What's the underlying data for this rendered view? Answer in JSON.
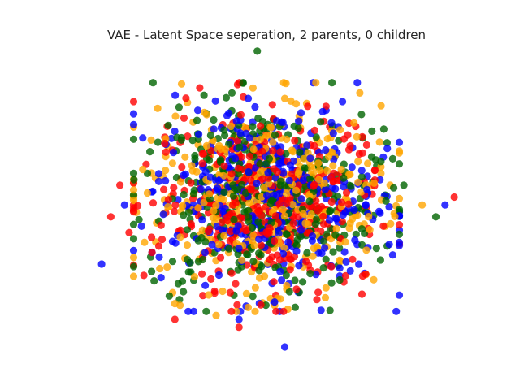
{
  "chart_data": {
    "type": "scatter",
    "title": "VAE - Latent Space seperation, 2 parents, 0 children",
    "xlabel": "",
    "ylabel": "",
    "axes_visible": false,
    "grid": false,
    "legend": "none",
    "x_range": [
      -4.4,
      4.4
    ],
    "y_range": [
      -3.8,
      3.8
    ],
    "marker_alpha": 0.8,
    "series": [
      {
        "color": "#ff0000",
        "values": [
          [
            -3.2,
            0.3
          ],
          [
            4.1,
            0.0
          ],
          [
            -3.4,
            -0.5
          ],
          [
            -3.0,
            -0.9
          ],
          [
            -1.8,
            2.0
          ],
          [
            0.9,
            2.3
          ],
          [
            1.3,
            2.3
          ],
          [
            -2.0,
            -3.1
          ],
          [
            1.1,
            -2.6
          ],
          [
            -0.6,
            -3.3
          ],
          [
            2.1,
            -2.0
          ],
          [
            -2.2,
            -0.4
          ],
          [
            1.8,
            1.2
          ],
          [
            -1.4,
            1.1
          ]
        ]
      },
      {
        "color": "#ffa500",
        "values": [
          [
            0.4,
            2.5
          ],
          [
            2.0,
            0.9
          ],
          [
            -2.0,
            -2.7
          ],
          [
            -1.1,
            -3.0
          ],
          [
            3.4,
            -0.2
          ],
          [
            2.5,
            0.6
          ],
          [
            1.3,
            -2.3
          ],
          [
            -0.4,
            -2.8
          ],
          [
            -1.6,
            1.9
          ],
          [
            2.7,
            0.3
          ],
          [
            -2.7,
            0.7
          ],
          [
            1.6,
            -1.6
          ]
        ]
      },
      {
        "color": "#0000ff",
        "values": [
          [
            -1.5,
            2.2
          ],
          [
            -0.4,
            2.5
          ],
          [
            3.9,
            -0.2
          ],
          [
            -3.6,
            -1.7
          ],
          [
            0.4,
            -3.8
          ],
          [
            -0.6,
            -3.1
          ],
          [
            1.6,
            -1.8
          ],
          [
            -2.7,
            1.5
          ],
          [
            -3.1,
            -0.2
          ],
          [
            -2.5,
            -1.4
          ],
          [
            1.3,
            2.2
          ],
          [
            1.6,
            -2.0
          ]
        ]
      },
      {
        "color": "#006400",
        "values": [
          [
            -0.2,
            3.7
          ],
          [
            2.5,
            0.9
          ],
          [
            3.0,
            0.3
          ],
          [
            3.7,
            -0.5
          ],
          [
            -1.9,
            -2.6
          ],
          [
            1.6,
            -2.1
          ],
          [
            -2.6,
            0.6
          ],
          [
            2.1,
            1.5
          ],
          [
            -1.5,
            1.6
          ],
          [
            0.5,
            -2.4
          ],
          [
            2.4,
            -1.3
          ],
          [
            -1.7,
            -1.9
          ]
        ]
      }
    ]
  }
}
